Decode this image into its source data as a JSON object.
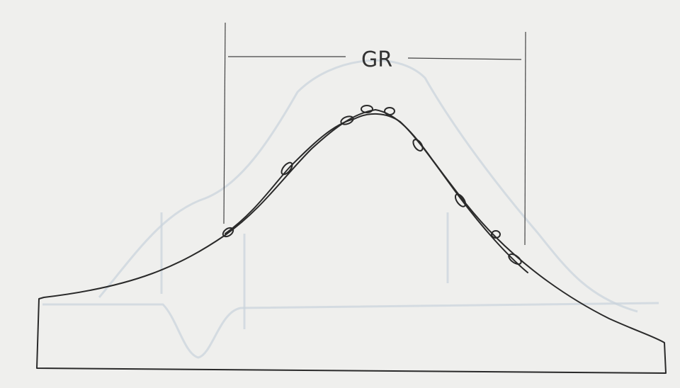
{
  "annotation": {
    "label": "GR"
  }
}
